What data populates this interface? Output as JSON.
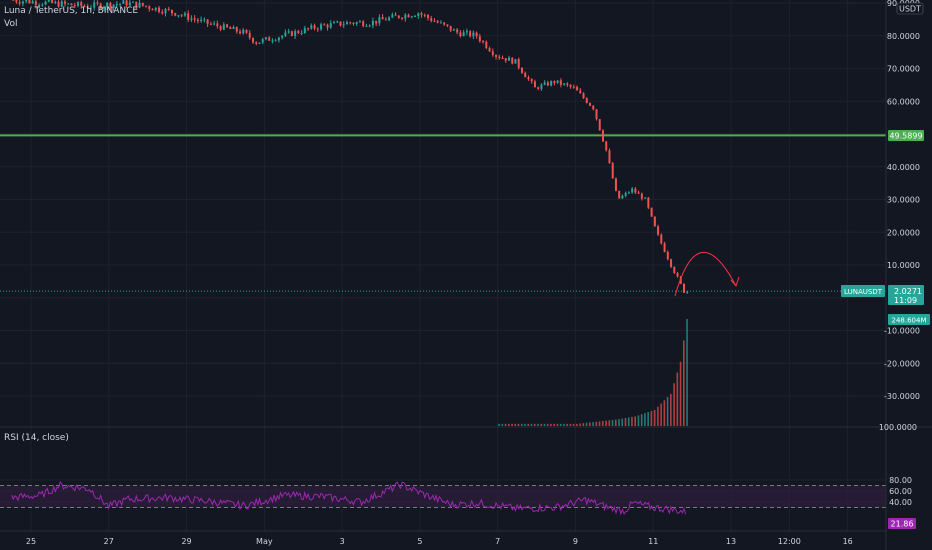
{
  "header": {
    "symbol_line": "Luna / TetherUS, 1h, BINANCE",
    "volume_label": "Vol",
    "currency_label": "USDT"
  },
  "rsi": {
    "label": "RSI (14, close)",
    "current_label": "21.86",
    "upper_band": 70,
    "lower_band": 30
  },
  "colors": {
    "background": "#131722",
    "up": "#26a69a",
    "down": "#ef5350",
    "horizontal_line": "#4caf50",
    "rsi_line": "#9c27b0",
    "rsi_band_fill": "#2a1e3a",
    "annotation": "#f23645"
  },
  "chart_data": [
    {
      "type": "candlestick",
      "title": "Luna / TetherUS, 1h, BINANCE",
      "x_tick_labels": [
        "25",
        "27",
        "29",
        "May",
        "3",
        "5",
        "7",
        "9",
        "11",
        "13",
        "12:00",
        "16"
      ],
      "y_tick_labels": [
        "90.0000",
        "80.0000",
        "70.0000",
        "60.0000",
        "40.0000",
        "30.0000",
        "20.0000",
        "10.0000",
        "-10.0000",
        "-20.0000",
        "-30.0000",
        "100.0000"
      ],
      "ylim": [
        -40,
        90
      ],
      "grid": true,
      "price_anchors": [
        {
          "date": "2022-04-24 12:00",
          "price": 91
        },
        {
          "date": "2022-04-25 12:00",
          "price": 90
        },
        {
          "date": "2022-04-26 12:00",
          "price": 89
        },
        {
          "date": "2022-04-27 12:00",
          "price": 90
        },
        {
          "date": "2022-04-28 00:00",
          "price": 89
        },
        {
          "date": "2022-04-28 18:00",
          "price": 87
        },
        {
          "date": "2022-04-29 12:00",
          "price": 84
        },
        {
          "date": "2022-04-30 12:00",
          "price": 81
        },
        {
          "date": "2022-04-30 20:00",
          "price": 78
        },
        {
          "date": "2022-05-01 12:00",
          "price": 80
        },
        {
          "date": "2022-05-02 12:00",
          "price": 83
        },
        {
          "date": "2022-05-03 06:00",
          "price": 84
        },
        {
          "date": "2022-05-03 18:00",
          "price": 84
        },
        {
          "date": "2022-05-04 12:00",
          "price": 86
        },
        {
          "date": "2022-05-05 00:00",
          "price": 87
        },
        {
          "date": "2022-05-05 12:00",
          "price": 84
        },
        {
          "date": "2022-05-06 00:00",
          "price": 81
        },
        {
          "date": "2022-05-06 12:00",
          "price": 80
        },
        {
          "date": "2022-05-07 00:00",
          "price": 74
        },
        {
          "date": "2022-05-07 12:00",
          "price": 72
        },
        {
          "date": "2022-05-08 00:00",
          "price": 64
        },
        {
          "date": "2022-05-08 12:00",
          "price": 66
        },
        {
          "date": "2022-05-09 00:00",
          "price": 64
        },
        {
          "date": "2022-05-09 12:00",
          "price": 58
        },
        {
          "date": "2022-05-09 20:00",
          "price": 45
        },
        {
          "date": "2022-05-10 03:00",
          "price": 30
        },
        {
          "date": "2022-05-10 12:00",
          "price": 33
        },
        {
          "date": "2022-05-10 20:00",
          "price": 30
        },
        {
          "date": "2022-05-11 03:00",
          "price": 20
        },
        {
          "date": "2022-05-11 12:00",
          "price": 10
        },
        {
          "date": "2022-05-11 20:00",
          "price": 2
        }
      ],
      "volume": {
        "label": "Vol",
        "last_value_label": "248.604M",
        "anchors": [
          {
            "date": "2022-05-09 00:00",
            "value": 2
          },
          {
            "date": "2022-05-10 00:00",
            "value": 6
          },
          {
            "date": "2022-05-10 12:00",
            "value": 9
          },
          {
            "date": "2022-05-11 00:00",
            "value": 15
          },
          {
            "date": "2022-05-11 10:00",
            "value": 30
          },
          {
            "date": "2022-05-11 16:00",
            "value": 60
          },
          {
            "date": "2022-05-11 20:00",
            "value": 100
          }
        ]
      },
      "horizontal_line": {
        "value": 49.5899,
        "label": "49.5899"
      },
      "last_price": {
        "symbol": "LUNAUSDT",
        "value": 2.0271,
        "label": "2.0271",
        "countdown": "11:09"
      }
    },
    {
      "type": "line",
      "title": "RSI (14, close)",
      "y_tick_labels": [
        "80.00",
        "60.00",
        "40.00"
      ],
      "ylim": [
        18,
        88
      ],
      "bands": [
        70,
        30
      ],
      "last_value": 21.86,
      "anchors": [
        {
          "date": "2022-04-24 12:00",
          "value": 48
        },
        {
          "date": "2022-04-25 06:00",
          "value": 52
        },
        {
          "date": "2022-04-25 18:00",
          "value": 70
        },
        {
          "date": "2022-04-26 12:00",
          "value": 64
        },
        {
          "date": "2022-04-27 00:00",
          "value": 32
        },
        {
          "date": "2022-04-27 12:00",
          "value": 45
        },
        {
          "date": "2022-04-28 12:00",
          "value": 48
        },
        {
          "date": "2022-04-29 12:00",
          "value": 42
        },
        {
          "date": "2022-04-30 12:00",
          "value": 33
        },
        {
          "date": "2022-05-01 12:00",
          "value": 52
        },
        {
          "date": "2022-05-02 12:00",
          "value": 50
        },
        {
          "date": "2022-05-03 12:00",
          "value": 40
        },
        {
          "date": "2022-05-04 12:00",
          "value": 72
        },
        {
          "date": "2022-05-05 06:00",
          "value": 50
        },
        {
          "date": "2022-05-05 20:00",
          "value": 35
        },
        {
          "date": "2022-05-06 12:00",
          "value": 38
        },
        {
          "date": "2022-05-07 12:00",
          "value": 28
        },
        {
          "date": "2022-05-08 12:00",
          "value": 30
        },
        {
          "date": "2022-05-09 06:00",
          "value": 44
        },
        {
          "date": "2022-05-09 20:00",
          "value": 30
        },
        {
          "date": "2022-05-10 06:00",
          "value": 24
        },
        {
          "date": "2022-05-10 12:00",
          "value": 38
        },
        {
          "date": "2022-05-11 00:00",
          "value": 30
        },
        {
          "date": "2022-05-11 12:00",
          "value": 26
        },
        {
          "date": "2022-05-11 20:00",
          "value": 21.86
        }
      ]
    }
  ]
}
